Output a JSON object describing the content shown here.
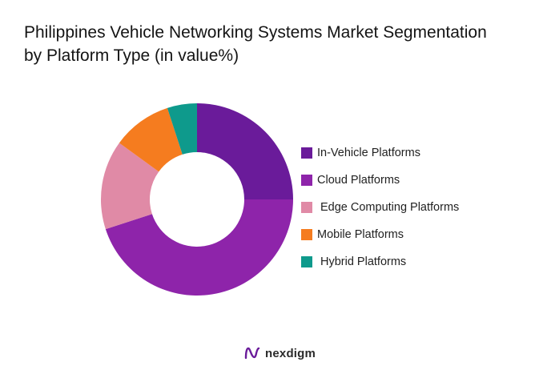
{
  "title_lines": [
    "Philippines Vehicle Networking Systems Market Segmentation",
    "by Platform Type (in value%)"
  ],
  "chart_data": {
    "type": "pie",
    "variant": "donut",
    "title": "Philippines Vehicle Networking Systems Market Segmentation by Platform Type (in value%)",
    "categories": [
      "In-Vehicle Platforms",
      "Cloud Platforms",
      "Edge Computing Platforms",
      "Mobile Platforms",
      "Hybrid Platforms"
    ],
    "values": [
      25,
      45,
      15,
      10,
      5
    ],
    "colors": [
      "#6a1b9a",
      "#8e24aa",
      "#e08aa6",
      "#f57c1f",
      "#0e9a8c"
    ],
    "legend_position": "right"
  },
  "brand": {
    "name": "nexdigm",
    "logo_icon": "nexdigm-logo-icon",
    "color": "#6a1b9a"
  }
}
